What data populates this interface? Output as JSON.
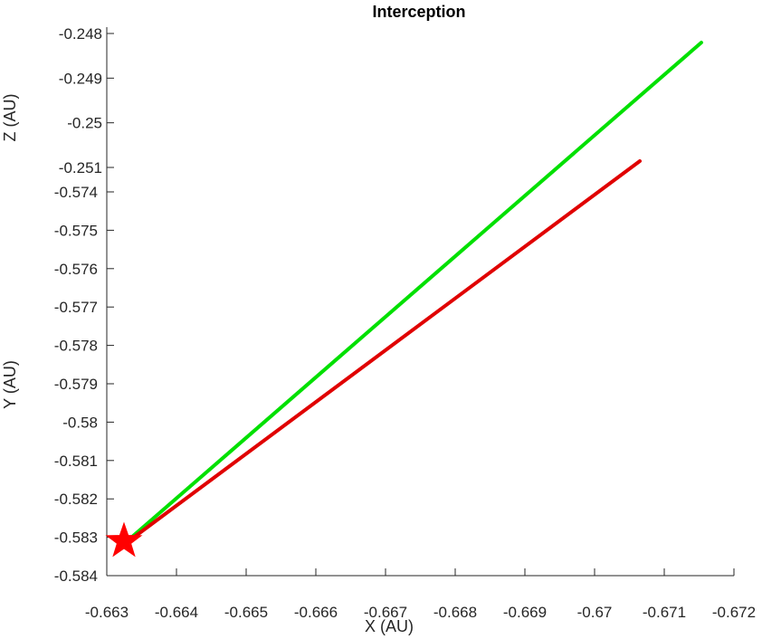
{
  "chart_data": {
    "type": "line",
    "title": "Interception",
    "xlabel": "X (AU)",
    "ylabel": "Y (AU)",
    "zlabel": "Z (AU)",
    "view": "3d-perspective",
    "grid": false,
    "legend": "none",
    "x_ticks": [
      "-0.663",
      "-0.664",
      "-0.665",
      "-0.666",
      "-0.667",
      "-0.668",
      "-0.669",
      "-0.67",
      "-0.671",
      "-0.672"
    ],
    "y_ticks": [
      "-0.574",
      "-0.575",
      "-0.576",
      "-0.577",
      "-0.578",
      "-0.579",
      "-0.58",
      "-0.581",
      "-0.582",
      "-0.583",
      "-0.584"
    ],
    "z_ticks": [
      "-0.248",
      "-0.249",
      "-0.25",
      "-0.251"
    ],
    "xlim": [
      -0.663,
      -0.672
    ],
    "ylim": [
      -0.584,
      -0.574
    ],
    "zlim": [
      -0.2512,
      -0.2479
    ],
    "series": [
      {
        "color": "#00e000",
        "points": [
          {
            "x": -0.6632,
            "y": -0.5829,
            "z": -0.2512
          },
          {
            "x": -0.6715,
            "y": -0.5743,
            "z": -0.2479
          }
        ]
      },
      {
        "color": "#e00000",
        "points": [
          {
            "x": -0.6632,
            "y": -0.583,
            "z": -0.2512
          },
          {
            "x": -0.6706,
            "y": -0.576,
            "z": -0.2495
          }
        ]
      }
    ],
    "markers": [
      {
        "shape": "star",
        "color": "#ff0000",
        "x": -0.6632,
        "y": -0.5831,
        "z": -0.2512
      }
    ]
  }
}
